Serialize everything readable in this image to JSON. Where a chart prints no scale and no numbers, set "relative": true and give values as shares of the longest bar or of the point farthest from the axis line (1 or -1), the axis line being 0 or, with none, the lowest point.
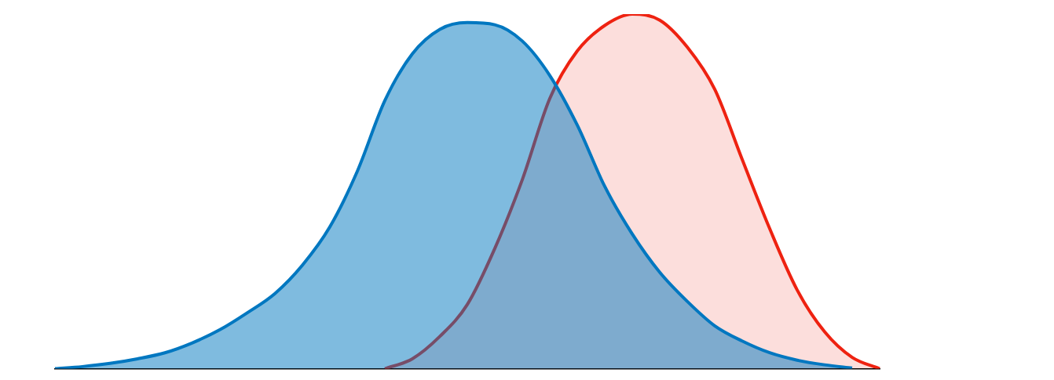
{
  "chart_data": {
    "type": "area",
    "relative": true,
    "grid": false,
    "legend": false,
    "marker": "none",
    "categories": [
      null,
      null,
      null,
      null,
      null,
      null,
      null,
      null,
      null,
      null,
      null,
      null,
      null,
      null,
      null,
      null,
      null,
      null,
      null,
      null,
      null,
      null,
      null,
      null,
      null,
      null,
      null,
      null,
      null,
      null,
      null
    ],
    "series": [
      {
        "color": "#0077c0",
        "values": [
          0,
          0.006,
          0.015,
          0.028,
          0.045,
          0.073,
          0.11,
          0.158,
          0.212,
          0.292,
          0.4,
          0.557,
          0.756,
          0.888,
          0.957,
          0.976,
          0.97,
          0.924,
          0.827,
          0.687,
          0.514,
          0.38,
          0.272,
          0.19,
          0.121,
          0.078,
          0.045,
          0.024,
          0.011,
          0.002,
          null
        ]
      },
      {
        "color": "#ee2211",
        "values": [
          null,
          null,
          null,
          null,
          null,
          null,
          null,
          null,
          null,
          null,
          null,
          null,
          0,
          0.028,
          0.091,
          0.181,
          0.339,
          0.533,
          0.762,
          0.896,
          0.968,
          1,
          0.983,
          0.907,
          0.788,
          0.59,
          0.395,
          0.222,
          0.104,
          0.032,
          0
        ]
      }
    ]
  }
}
